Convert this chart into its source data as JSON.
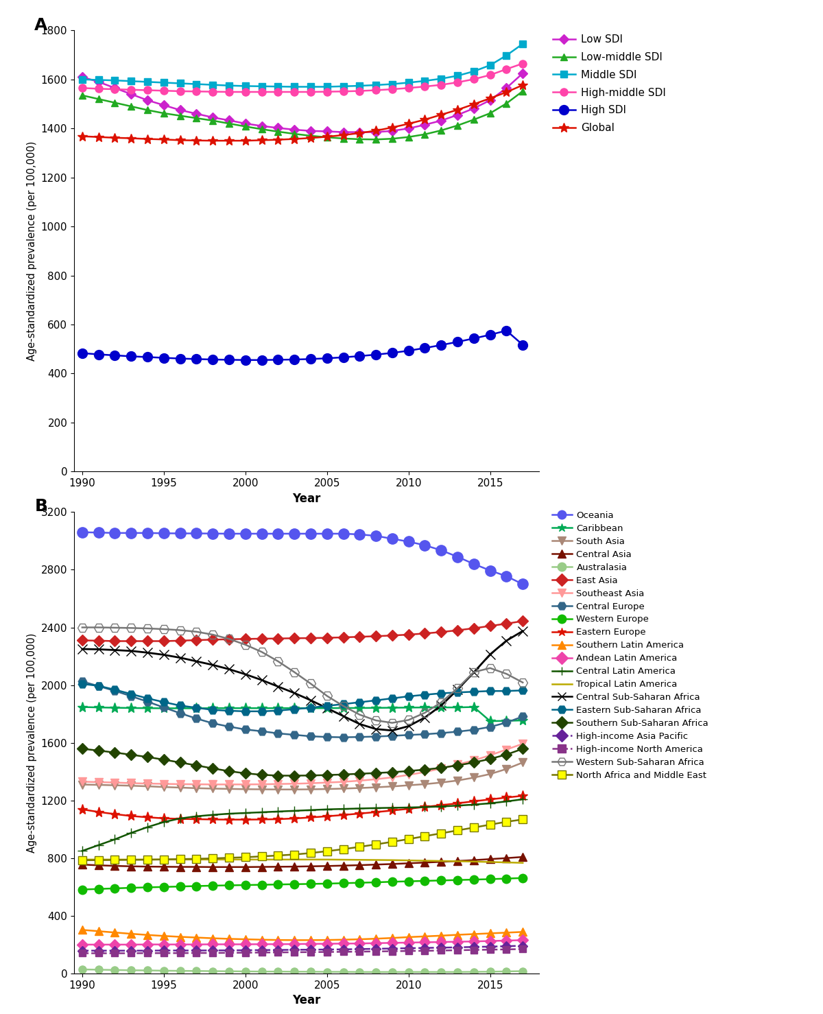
{
  "years": [
    1990,
    1991,
    1992,
    1993,
    1994,
    1995,
    1996,
    1997,
    1998,
    1999,
    2000,
    2001,
    2002,
    2003,
    2004,
    2005,
    2006,
    2007,
    2008,
    2009,
    2010,
    2011,
    2012,
    2013,
    2014,
    2015,
    2016,
    2017
  ],
  "panel_A": {
    "Low SDI": [
      1610,
      1590,
      1565,
      1540,
      1515,
      1495,
      1475,
      1460,
      1445,
      1433,
      1420,
      1410,
      1402,
      1395,
      1390,
      1388,
      1385,
      1385,
      1385,
      1390,
      1400,
      1415,
      1432,
      1455,
      1482,
      1515,
      1565,
      1625
    ],
    "Low-middle SDI": [
      1535,
      1520,
      1505,
      1490,
      1475,
      1462,
      1452,
      1442,
      1432,
      1420,
      1408,
      1397,
      1387,
      1378,
      1370,
      1364,
      1359,
      1356,
      1355,
      1358,
      1365,
      1376,
      1392,
      1412,
      1436,
      1462,
      1502,
      1552
    ],
    "Middle SDI": [
      1600,
      1598,
      1596,
      1593,
      1590,
      1587,
      1584,
      1581,
      1578,
      1575,
      1573,
      1572,
      1571,
      1570,
      1570,
      1570,
      1572,
      1574,
      1577,
      1581,
      1587,
      1594,
      1603,
      1615,
      1633,
      1658,
      1698,
      1745
    ],
    "High-middle SDI": [
      1565,
      1562,
      1560,
      1558,
      1556,
      1554,
      1552,
      1551,
      1550,
      1549,
      1549,
      1549,
      1549,
      1549,
      1549,
      1550,
      1551,
      1553,
      1556,
      1560,
      1565,
      1571,
      1578,
      1588,
      1601,
      1618,
      1642,
      1665
    ],
    "High SDI": [
      483,
      478,
      474,
      470,
      467,
      464,
      461,
      459,
      457,
      456,
      455,
      455,
      456,
      457,
      459,
      462,
      466,
      471,
      477,
      484,
      493,
      504,
      516,
      529,
      543,
      558,
      575,
      517
    ],
    "Global": [
      1368,
      1365,
      1362,
      1360,
      1357,
      1355,
      1352,
      1351,
      1350,
      1350,
      1350,
      1352,
      1354,
      1357,
      1361,
      1366,
      1373,
      1381,
      1391,
      1404,
      1419,
      1436,
      1456,
      1476,
      1499,
      1523,
      1548,
      1577
    ]
  },
  "panel_A_colors": {
    "Low SDI": "#CC22CC",
    "Low-middle SDI": "#22AA22",
    "Middle SDI": "#00AACC",
    "High-middle SDI": "#FF44AA",
    "High SDI": "#0000CC",
    "Global": "#DD1100"
  },
  "panel_A_markers": {
    "Low SDI": "D",
    "Low-middle SDI": "^",
    "Middle SDI": "s",
    "High-middle SDI": "o",
    "High SDI": "o",
    "Global": "*"
  },
  "panel_B": {
    "Oceania": [
      3060,
      3058,
      3055,
      3055,
      3055,
      3053,
      3052,
      3052,
      3051,
      3050,
      3050,
      3050,
      3050,
      3050,
      3050,
      3050,
      3050,
      3045,
      3035,
      3015,
      2995,
      2970,
      2935,
      2890,
      2840,
      2795,
      2755,
      2700
    ],
    "Caribbean": [
      1848,
      1845,
      1843,
      1841,
      1840,
      1839,
      1839,
      1839,
      1840,
      1840,
      1840,
      1840,
      1840,
      1840,
      1840,
      1840,
      1841,
      1841,
      1842,
      1843,
      1844,
      1845,
      1845,
      1845,
      1848,
      1750,
      1752,
      1755
    ],
    "South Asia": [
      1310,
      1308,
      1305,
      1302,
      1298,
      1293,
      1289,
      1285,
      1282,
      1280,
      1278,
      1277,
      1276,
      1276,
      1277,
      1279,
      1282,
      1286,
      1291,
      1297,
      1305,
      1313,
      1324,
      1338,
      1358,
      1383,
      1418,
      1463
    ],
    "Central Asia": [
      755,
      750,
      746,
      743,
      741,
      740,
      739,
      739,
      738,
      738,
      738,
      739,
      740,
      741,
      743,
      745,
      748,
      751,
      755,
      759,
      764,
      769,
      774,
      780,
      786,
      793,
      800,
      808
    ],
    "Australasia": [
      28,
      26,
      24,
      22,
      21,
      19,
      18,
      17,
      16,
      15,
      14,
      13,
      13,
      12,
      12,
      11,
      11,
      10,
      10,
      10,
      10,
      10,
      10,
      10,
      11,
      12,
      14,
      16
    ],
    "East Asia": [
      2310,
      2308,
      2305,
      2305,
      2305,
      2305,
      2308,
      2312,
      2315,
      2318,
      2320,
      2322,
      2323,
      2325,
      2326,
      2328,
      2331,
      2335,
      2339,
      2344,
      2350,
      2358,
      2368,
      2380,
      2394,
      2410,
      2426,
      2444
    ],
    "Southeast Asia": [
      1330,
      1327,
      1324,
      1320,
      1317,
      1315,
      1313,
      1312,
      1311,
      1311,
      1311,
      1312,
      1314,
      1316,
      1319,
      1324,
      1329,
      1337,
      1347,
      1360,
      1377,
      1397,
      1422,
      1449,
      1478,
      1513,
      1553,
      1593
    ],
    "Central Europe": [
      2025,
      1993,
      1960,
      1923,
      1885,
      1845,
      1805,
      1768,
      1735,
      1712,
      1692,
      1680,
      1665,
      1655,
      1645,
      1640,
      1638,
      1640,
      1643,
      1648,
      1654,
      1659,
      1667,
      1677,
      1690,
      1710,
      1740,
      1782
    ],
    "Western Europe": [
      582,
      586,
      590,
      594,
      597,
      600,
      603,
      606,
      609,
      611,
      613,
      615,
      617,
      619,
      621,
      623,
      626,
      629,
      632,
      636,
      639,
      642,
      645,
      648,
      651,
      654,
      658,
      662
    ],
    "Eastern Europe": [
      1138,
      1120,
      1105,
      1092,
      1083,
      1076,
      1072,
      1070,
      1068,
      1067,
      1067,
      1068,
      1070,
      1075,
      1082,
      1090,
      1099,
      1109,
      1119,
      1130,
      1142,
      1155,
      1167,
      1180,
      1194,
      1207,
      1220,
      1232
    ],
    "Southern Latin America": [
      302,
      293,
      284,
      275,
      267,
      260,
      254,
      249,
      244,
      240,
      237,
      234,
      232,
      231,
      231,
      232,
      234,
      237,
      241,
      246,
      252,
      257,
      262,
      268,
      273,
      278,
      283,
      288
    ],
    "Andean Latin America": [
      200,
      200,
      200,
      200,
      201,
      201,
      201,
      201,
      202,
      202,
      202,
      203,
      203,
      204,
      205,
      206,
      207,
      208,
      210,
      212,
      214,
      216,
      218,
      220,
      222,
      225,
      228,
      231
    ],
    "Central Latin America": [
      850,
      890,
      930,
      975,
      1015,
      1050,
      1075,
      1090,
      1100,
      1108,
      1113,
      1118,
      1123,
      1128,
      1133,
      1138,
      1141,
      1144,
      1147,
      1149,
      1151,
      1154,
      1158,
      1164,
      1171,
      1180,
      1193,
      1208
    ],
    "Tropical Latin America": [
      790,
      790,
      790,
      790,
      790,
      790,
      790,
      790,
      790,
      790,
      790,
      790,
      790,
      790,
      790,
      790,
      789,
      788,
      787,
      786,
      784,
      782,
      780,
      778,
      776,
      773,
      770,
      767
    ],
    "Central Sub-Saharan Africa": [
      2250,
      2248,
      2243,
      2237,
      2225,
      2210,
      2190,
      2165,
      2140,
      2110,
      2075,
      2035,
      1990,
      1945,
      1895,
      1840,
      1785,
      1730,
      1695,
      1685,
      1715,
      1775,
      1858,
      1968,
      2088,
      2213,
      2308,
      2375
    ],
    "Eastern Sub-Saharan Africa": [
      2008,
      1995,
      1968,
      1938,
      1908,
      1882,
      1858,
      1843,
      1828,
      1822,
      1818,
      1818,
      1823,
      1833,
      1843,
      1856,
      1868,
      1881,
      1894,
      1908,
      1922,
      1933,
      1943,
      1949,
      1954,
      1959,
      1959,
      1963
    ],
    "Southern Sub-Saharan Africa": [
      1558,
      1546,
      1532,
      1517,
      1501,
      1483,
      1463,
      1443,
      1422,
      1403,
      1388,
      1378,
      1372,
      1372,
      1373,
      1376,
      1380,
      1385,
      1390,
      1396,
      1404,
      1414,
      1426,
      1443,
      1463,
      1488,
      1518,
      1558
    ],
    "High-income Asia Pacific": [
      158,
      158,
      158,
      158,
      158,
      159,
      159,
      159,
      160,
      160,
      161,
      162,
      163,
      164,
      165,
      166,
      167,
      169,
      171,
      173,
      175,
      177,
      179,
      181,
      184,
      186,
      189,
      192
    ],
    "High-income North America": [
      140,
      140,
      140,
      140,
      141,
      141,
      141,
      142,
      142,
      143,
      144,
      145,
      146,
      147,
      148,
      149,
      150,
      151,
      153,
      154,
      156,
      157,
      159,
      161,
      163,
      165,
      167,
      169
    ],
    "Western Sub-Saharan Africa": [
      2400,
      2400,
      2398,
      2396,
      2393,
      2388,
      2381,
      2370,
      2350,
      2320,
      2280,
      2230,
      2165,
      2090,
      2010,
      1925,
      1855,
      1795,
      1755,
      1738,
      1758,
      1808,
      1880,
      1978,
      2090,
      2118,
      2078,
      2018
    ],
    "North Africa and Middle East": [
      785,
      786,
      787,
      788,
      789,
      791,
      793,
      795,
      798,
      802,
      806,
      812,
      818,
      825,
      835,
      848,
      862,
      878,
      895,
      913,
      932,
      952,
      972,
      992,
      1012,
      1032,
      1052,
      1068
    ]
  },
  "panel_B_colors": {
    "Oceania": "#5555EE",
    "Caribbean": "#00AA55",
    "South Asia": "#AA8877",
    "Central Asia": "#771100",
    "Australasia": "#99CC88",
    "East Asia": "#CC2222",
    "Southeast Asia": "#FF9999",
    "Central Europe": "#336688",
    "Western Europe": "#11BB00",
    "Eastern Europe": "#DD1100",
    "Southern Latin America": "#FF8800",
    "Andean Latin America": "#EE44AA",
    "Central Latin America": "#115500",
    "Tropical Latin America": "#BBAA00",
    "Central Sub-Saharan Africa": "#000000",
    "Eastern Sub-Saharan Africa": "#006688",
    "Southern Sub-Saharan Africa": "#224400",
    "High-income Asia Pacific": "#662299",
    "High-income North America": "#883388",
    "Western Sub-Saharan Africa": "#777777",
    "North Africa and Middle East": "#777700"
  },
  "panel_B_linestyles": {
    "Oceania": "-",
    "Caribbean": "-",
    "South Asia": "-",
    "Central Asia": "-",
    "Australasia": "-",
    "East Asia": "-",
    "Southeast Asia": "-",
    "Central Europe": "-",
    "Western Europe": "-",
    "Eastern Europe": "-",
    "Southern Latin America": "-",
    "Andean Latin America": "-",
    "Central Latin America": "-",
    "Tropical Latin America": "-",
    "Central Sub-Saharan Africa": "-",
    "Eastern Sub-Saharan Africa": "-",
    "Southern Sub-Saharan Africa": "-",
    "High-income Asia Pacific": "--",
    "High-income North America": "--",
    "Western Sub-Saharan Africa": "-",
    "North Africa and Middle East": "-"
  }
}
